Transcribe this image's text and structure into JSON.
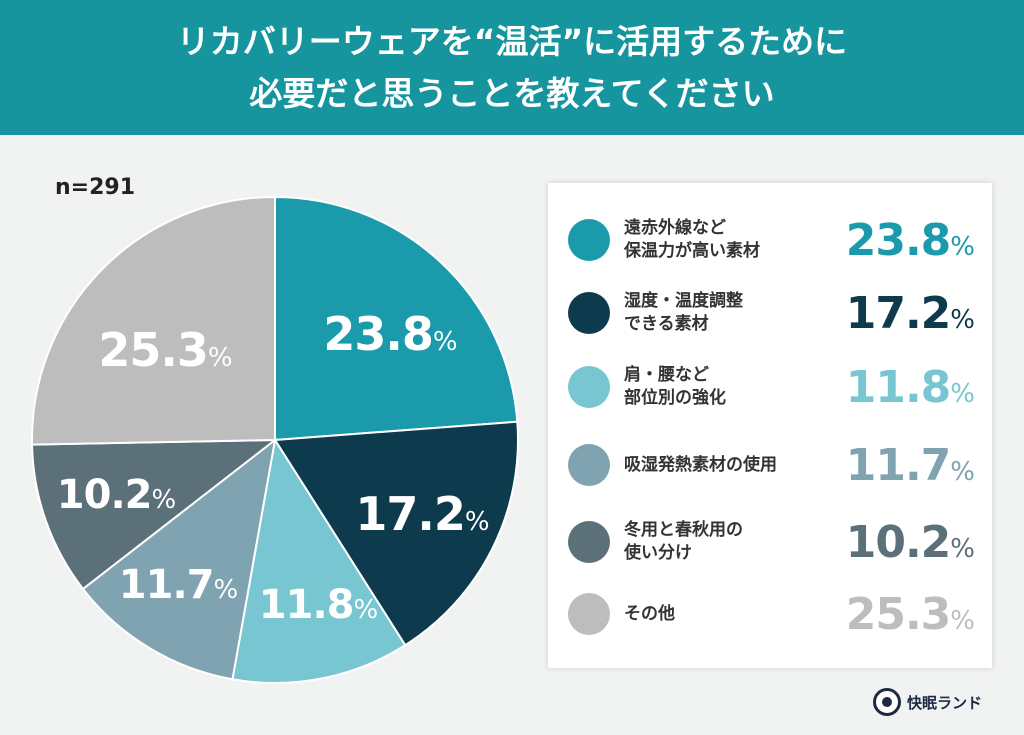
{
  "title": {
    "line1": "リカバリーウェアを“温活”に活用するために",
    "line2": "必要だと思うことを教えてください"
  },
  "sample": "n=291",
  "brand": "快眠ランド",
  "chart_data": {
    "type": "pie",
    "start": "12 o'clock",
    "direction": "clockwise",
    "unit": "%",
    "slices": [
      {
        "label": "遠赤外線など保温力が高い素材",
        "line1": "遠赤外線など",
        "line2": "保温力が高い素材",
        "value": 23.8,
        "color": "#1a9aab"
      },
      {
        "label": "湿度・温度調整できる素材",
        "line1": "湿度・温度調整",
        "line2": "できる素材",
        "value": 17.2,
        "color": "#0e3a4e"
      },
      {
        "label": "肩・腰など部位別の強化",
        "line1": "肩・腰など",
        "line2": "部位別の強化",
        "value": 11.8,
        "color": "#78c6d2"
      },
      {
        "label": "吸湿発熱素材の使用",
        "line1": "吸湿発熱素材の使用",
        "line2": "",
        "value": 11.7,
        "color": "#7fa3b1"
      },
      {
        "label": "冬用と春秋用の使い分け",
        "line1": "冬用と春秋用の",
        "line2": "使い分け",
        "value": 10.2,
        "color": "#5b7079"
      },
      {
        "label": "その他",
        "line1": "その他",
        "line2": "",
        "value": 25.3,
        "color": "#bdbdbd"
      }
    ]
  }
}
